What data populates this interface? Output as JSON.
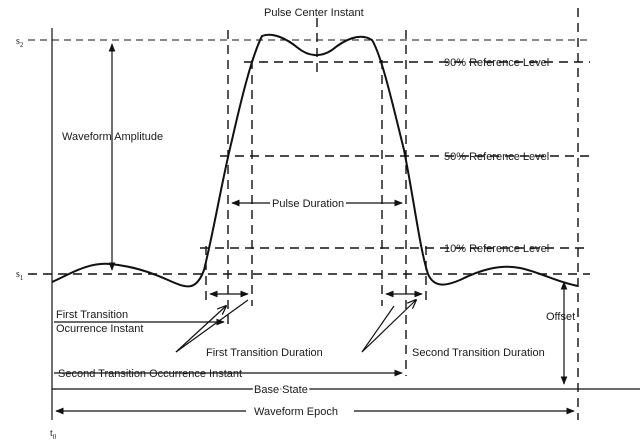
{
  "labels": {
    "pulse_center": "Pulse Center Instant",
    "s2": "s",
    "s2_sub": "2",
    "s1": "s",
    "s1_sub": "1",
    "t0": "t",
    "t0_sub": "0",
    "waveform_amplitude": "Waveform Amplitude",
    "ref90": "90% Reference Level",
    "ref50": "50% Reference Level",
    "ref10": "10% Reference Level",
    "pulse_duration": "Pulse Duration",
    "first_occurrence_line1": "First Transition",
    "first_occurrence_line2": "Ocurrence Instant",
    "first_duration": "First Transition Duration",
    "second_duration": "Second Transition Duration",
    "offset": "Offset",
    "second_occurrence": "Second Transition Occurrence Instant",
    "base_state": "Base State",
    "waveform_epoch": "Waveform Epoch"
  }
}
